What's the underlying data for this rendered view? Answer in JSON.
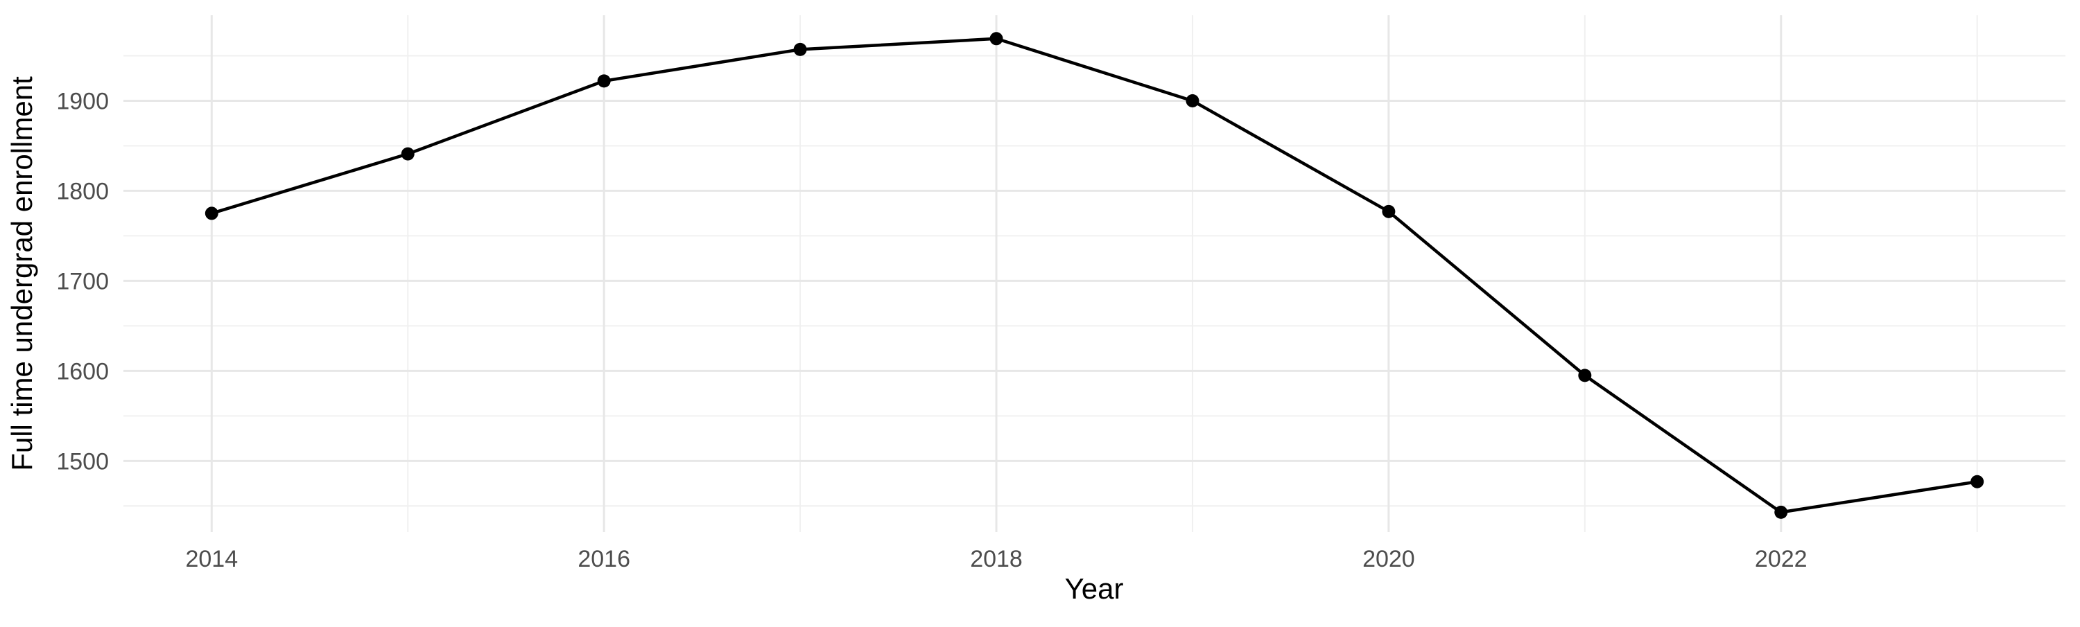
{
  "chart_data": {
    "type": "line",
    "title": "",
    "xlabel": "Year",
    "ylabel": "Full time undergrad enrollment",
    "x": [
      2014,
      2015,
      2016,
      2017,
      2018,
      2019,
      2020,
      2021,
      2022,
      2023
    ],
    "values": [
      1775,
      1841,
      1922,
      1957,
      1969,
      1900,
      1777,
      1595,
      1443,
      1477
    ],
    "series": [
      {
        "name": "Full time undergrad enrollment",
        "values": [
          1775,
          1841,
          1922,
          1957,
          1969,
          1900,
          1777,
          1595,
          1443,
          1477
        ]
      }
    ],
    "xlim": [
      2013.55,
      2023.45
    ],
    "ylim": [
      1421,
      1995
    ],
    "x_major_ticks": [
      2014,
      2016,
      2018,
      2020,
      2022
    ],
    "x_minor_gridlines": [
      2015,
      2017,
      2019,
      2021,
      2023
    ],
    "y_major_ticks": [
      1500,
      1600,
      1700,
      1800,
      1900
    ],
    "y_minor_gridlines": [
      1450,
      1550,
      1650,
      1750,
      1850,
      1950
    ],
    "grid": "on",
    "legend": "none",
    "marker": "point",
    "colors": {
      "background": "#ffffff",
      "line": "#000000",
      "point": "#000000",
      "grid_major": "#e7e7e7",
      "grid_minor": "#f0f0f0",
      "tick_label": "#4d4d4d",
      "axis_title": "#000000"
    }
  }
}
